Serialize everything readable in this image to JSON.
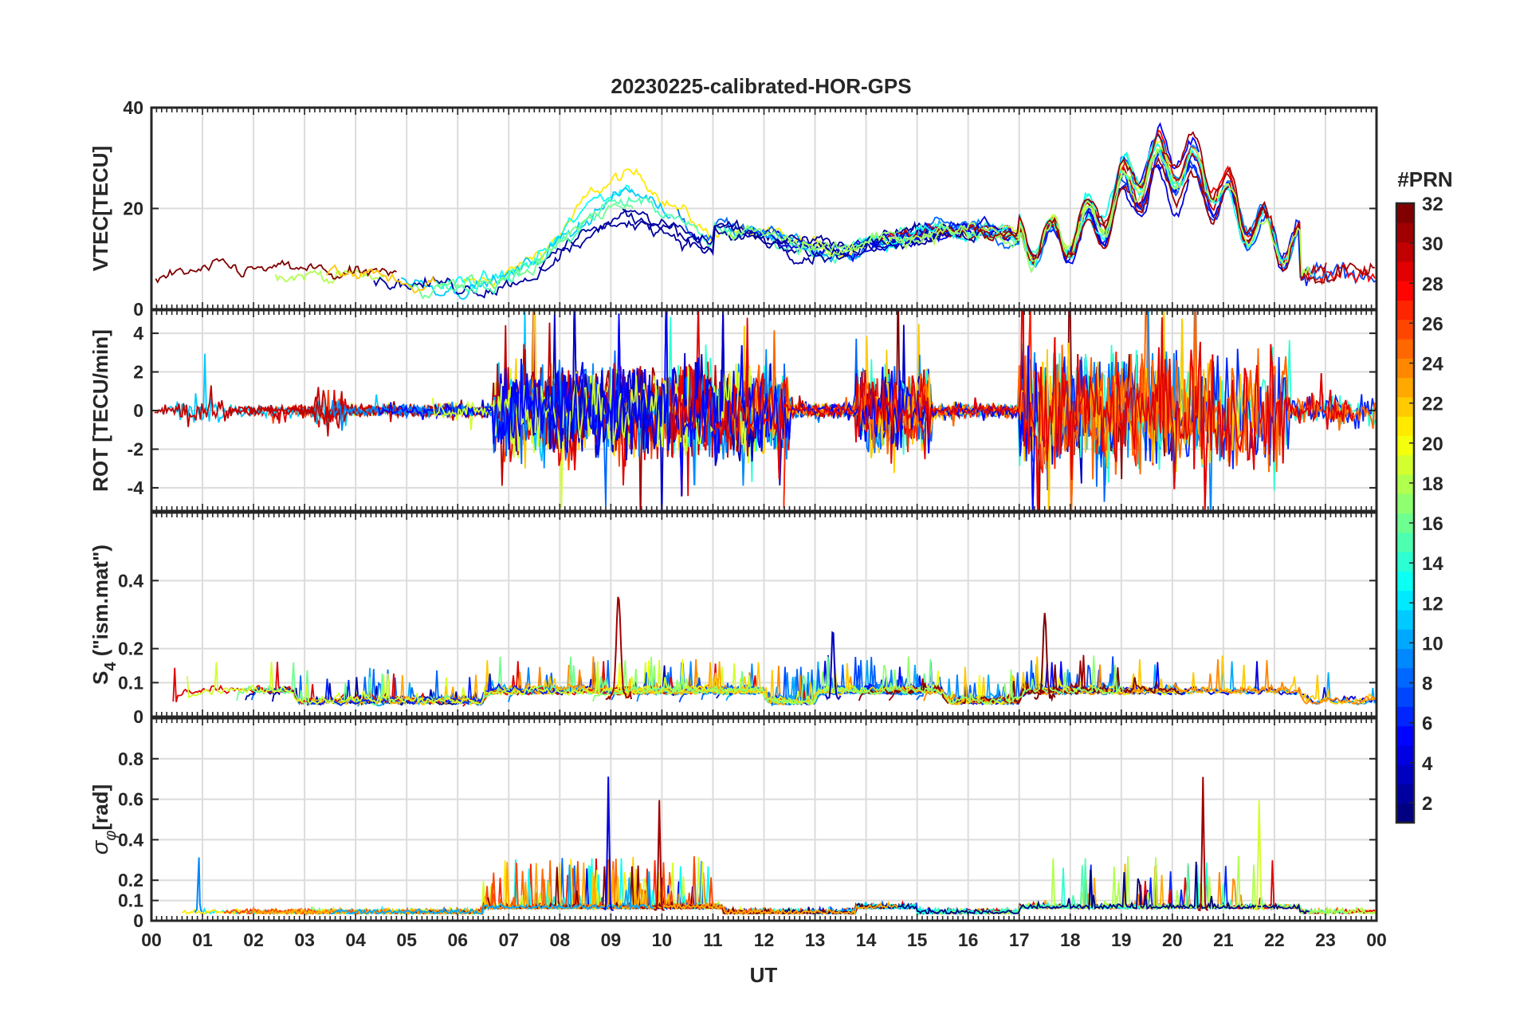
{
  "chart_data": {
    "type": "line",
    "title": "20230225-calibrated-HOR-GPS",
    "xlabel": "UT",
    "x_ticks": [
      "00",
      "01",
      "02",
      "03",
      "04",
      "05",
      "06",
      "07",
      "08",
      "09",
      "10",
      "11",
      "12",
      "13",
      "14",
      "15",
      "16",
      "17",
      "18",
      "19",
      "20",
      "21",
      "22",
      "23",
      "00"
    ],
    "xlim": [
      0,
      24
    ],
    "colorbar": {
      "label": "#PRN",
      "range": [
        1,
        32
      ],
      "ticks": [
        "2",
        "4",
        "6",
        "8",
        "10",
        "12",
        "14",
        "16",
        "18",
        "20",
        "22",
        "24",
        "26",
        "28",
        "30",
        "32"
      ],
      "colormap": "jet"
    },
    "panels": [
      {
        "ylabel": "VTEC[TECU]",
        "ylim": [
          0,
          40
        ],
        "y_ticks": [
          "0",
          "20",
          "40"
        ],
        "description_values": {
          "baseline_00_06": [
            4,
            10
          ],
          "peak_09_10": 30,
          "plateau_12_17": [
            12,
            18
          ],
          "peak_19_21": 37,
          "end_23_24": [
            4,
            10
          ]
        }
      },
      {
        "ylabel": "ROT [TECU/min]",
        "ylim": [
          -5.2,
          5.2
        ],
        "y_ticks": [
          "-4",
          "-2",
          "0",
          "2",
          "4"
        ],
        "activity_windows_hours": [
          [
            6.7,
            12.5
          ],
          [
            13.8,
            15.3
          ],
          [
            17.0,
            22.3
          ]
        ]
      },
      {
        "ylabel_main": "S",
        "ylabel_sub": "4",
        "ylabel_rest": " (\"ism.mat\")",
        "ylim": [
          0,
          0.6
        ],
        "y_ticks": [
          "0",
          "0.1",
          "0.2",
          "0.4"
        ],
        "peak_value": 0.35
      },
      {
        "ylabel_main": "σ",
        "ylabel_sub": "φ",
        "ylabel_rest": "[rad]",
        "ylim": [
          0,
          1
        ],
        "y_ticks": [
          "0",
          "0.1",
          "0.2",
          "0.4",
          "0.6",
          "0.8"
        ],
        "peak_value": 0.7
      }
    ]
  }
}
